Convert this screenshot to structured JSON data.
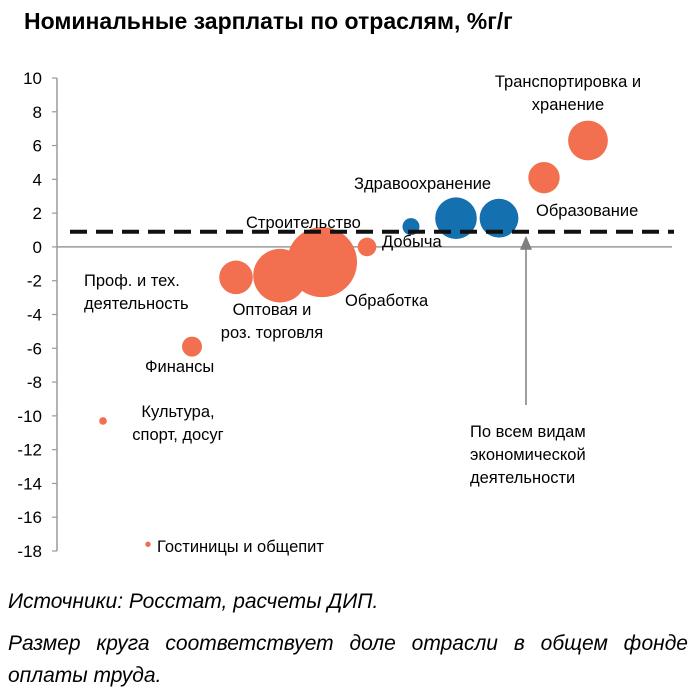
{
  "chart_data": {
    "type": "scatter",
    "title": "Номинальные зарплаты по отраслям, %г/г",
    "xlabel": "",
    "ylabel": "",
    "ylim": [
      -18,
      10
    ],
    "yticks": [
      10,
      8,
      6,
      4,
      2,
      0,
      -2,
      -4,
      -6,
      -8,
      -10,
      -12,
      -14,
      -16,
      -18
    ],
    "grid": false,
    "legend": "none",
    "reference_line": {
      "value": 0.9,
      "style": "dashed",
      "label": [
        "По всем видам",
        "экономической",
        "деятельности"
      ]
    },
    "colors": {
      "orange": "#F26F4F",
      "blue": "#1470AE",
      "reference": "#111111"
    },
    "points": [
      {
        "label": [
          "Гостиницы и общепит"
        ],
        "y": -17.6,
        "share": 0.1,
        "color": "orange"
      },
      {
        "label": [
          "Культура,",
          "спорт, досуг"
        ],
        "y": -10.3,
        "share": 0.2,
        "color": "orange"
      },
      {
        "label": [
          "Финансы"
        ],
        "y": -5.9,
        "share": 1.4,
        "color": "orange"
      },
      {
        "label": [
          "Проф. и тех.",
          "деятельность"
        ],
        "y": -1.8,
        "share": 3.9,
        "color": "orange"
      },
      {
        "label": [
          "Оптовая и",
          "роз. торговля"
        ],
        "y": -1.7,
        "share": 10.0,
        "color": "orange"
      },
      {
        "label": [
          "Обработка"
        ],
        "y": -0.9,
        "share": 17.0,
        "color": "orange"
      },
      {
        "label": [
          "Добыча"
        ],
        "y": 0.0,
        "share": 1.2,
        "color": "orange"
      },
      {
        "label": [
          "Строительство"
        ],
        "y": 1.2,
        "share": 1.0,
        "color": "blue"
      },
      {
        "label": [],
        "y": 1.7,
        "share": 6.0,
        "color": "blue"
      },
      {
        "label": [
          "Образование"
        ],
        "y": 1.7,
        "share": 5.2,
        "color": "blue"
      },
      {
        "label": [
          "Здравоохранение"
        ],
        "y": 4.1,
        "share": 3.4,
        "color": "orange"
      },
      {
        "label": [
          "Транспортировка и",
          "хранение"
        ],
        "y": 6.3,
        "share": 5.5,
        "color": "orange"
      }
    ]
  },
  "notes": {
    "source": "Источники: Росстат, расчеты ДИП.",
    "size": "Размер круга соответствует доле отрасли в общем фонде оплаты труда."
  }
}
